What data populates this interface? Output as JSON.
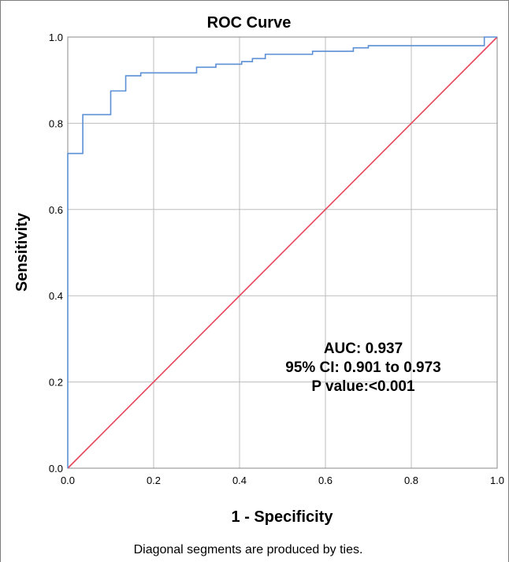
{
  "chart_data": {
    "type": "line",
    "title": "ROC Curve",
    "xlabel": "1 - Specificity",
    "ylabel": "Sensitivity",
    "xlim": [
      0,
      1
    ],
    "ylim": [
      0,
      1
    ],
    "grid": true,
    "x_ticks": [
      "0.0",
      "0.2",
      "0.4",
      "0.6",
      "0.8",
      "1.0"
    ],
    "y_ticks": [
      "0.0",
      "0.2",
      "0.4",
      "0.6",
      "0.8",
      "1.0"
    ],
    "series": [
      {
        "color": "#5b8fd6",
        "x": [
          0.0,
          0.0,
          0.035,
          0.035,
          0.1,
          0.1,
          0.135,
          0.135,
          0.17,
          0.17,
          0.3,
          0.3,
          0.345,
          0.345,
          0.405,
          0.405,
          0.43,
          0.43,
          0.46,
          0.46,
          0.57,
          0.57,
          0.665,
          0.665,
          0.7,
          0.7,
          0.97,
          0.97,
          1.0
        ],
        "y": [
          0.0,
          0.73,
          0.73,
          0.82,
          0.82,
          0.875,
          0.875,
          0.91,
          0.91,
          0.917,
          0.917,
          0.93,
          0.93,
          0.937,
          0.937,
          0.943,
          0.943,
          0.95,
          0.95,
          0.96,
          0.96,
          0.967,
          0.967,
          0.975,
          0.975,
          0.98,
          0.98,
          1.0,
          1.0
        ]
      },
      {
        "color": "#e8445a",
        "x": [
          0,
          1
        ],
        "y": [
          0,
          1
        ]
      }
    ],
    "annotations": [
      "AUC: 0.937",
      "95% CI: 0.901 to 0.973",
      "P value:<0.001"
    ],
    "footnote": "Diagonal segments are produced by ties."
  }
}
